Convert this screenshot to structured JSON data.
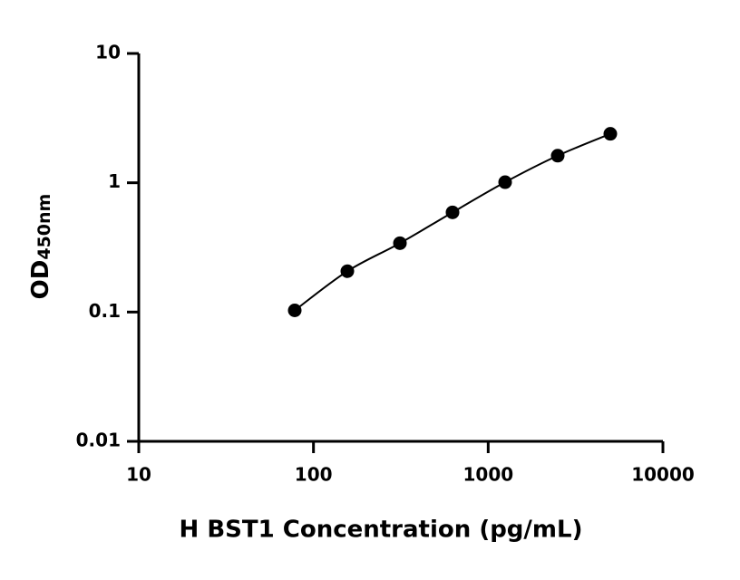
{
  "chart_data": {
    "type": "scatter",
    "x_label": "H BST1 Concentration (pg/mL)",
    "y_label": "OD",
    "y_label_subscript": "450nm",
    "x": [
      78.125,
      156.25,
      312.5,
      625,
      1250,
      2500,
      5000
    ],
    "values": [
      0.103,
      0.207,
      0.341,
      0.59,
      1.01,
      1.62,
      2.39
    ],
    "color": "#000000",
    "fit_line": true,
    "x_log": true,
    "y_log": true,
    "xlim": [
      10,
      10000
    ],
    "xticks": [
      10,
      100,
      1000,
      10000
    ],
    "ylim": [
      0.01,
      10
    ],
    "yticks": [
      0.01,
      0.1,
      1,
      10
    ]
  }
}
